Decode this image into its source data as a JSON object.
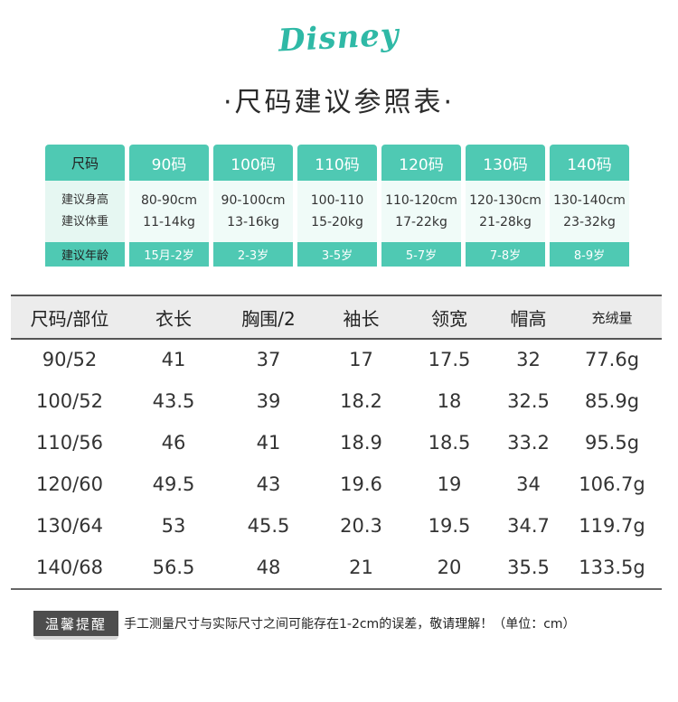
{
  "brand": {
    "logo_text": "DISNEY"
  },
  "title": "·尺码建议参照表·",
  "grid": {
    "labels": {
      "size": "尺码",
      "height": "建议身高",
      "weight": "建议体重",
      "age": "建议年龄"
    },
    "sizes": [
      {
        "size": "90码",
        "height": "80-90cm",
        "weight": "11-14kg",
        "age": "15月-2岁"
      },
      {
        "size": "100码",
        "height": "90-100cm",
        "weight": "13-16kg",
        "age": "2-3岁"
      },
      {
        "size": "110码",
        "height": "100-110",
        "weight": "15-20kg",
        "age": "3-5岁"
      },
      {
        "size": "120码",
        "height": "110-120cm",
        "weight": "17-22kg",
        "age": "5-7岁"
      },
      {
        "size": "130码",
        "height": "120-130cm",
        "weight": "21-28kg",
        "age": "7-8岁"
      },
      {
        "size": "140码",
        "height": "130-140cm",
        "weight": "23-32kg",
        "age": "8-9岁"
      }
    ],
    "colors": {
      "accent": "#4fc9b3",
      "light": "#e6f7f2"
    }
  },
  "table": {
    "headers": [
      "尺码/部位",
      "衣长",
      "胸围/2",
      "袖长",
      "领宽",
      "帽高",
      "充绒量"
    ],
    "rows": [
      [
        "90/52",
        "41",
        "37",
        "17",
        "17.5",
        "32",
        "77.6g"
      ],
      [
        "100/52",
        "43.5",
        "39",
        "18.2",
        "18",
        "32.5",
        "85.9g"
      ],
      [
        "110/56",
        "46",
        "41",
        "18.9",
        "18.5",
        "33.2",
        "95.5g"
      ],
      [
        "120/60",
        "49.5",
        "43",
        "19.6",
        "19",
        "34",
        "106.7g"
      ],
      [
        "130/64",
        "53",
        "45.5",
        "20.3",
        "19.5",
        "34.7",
        "119.7g"
      ],
      [
        "140/68",
        "56.5",
        "48",
        "21",
        "20",
        "35.5",
        "133.5g"
      ]
    ]
  },
  "notice": {
    "badge": "温馨提醒",
    "text": "手工测量尺寸与实际尺寸之间可能存在1-2cm的误差，敬请理解！（单位：cm）"
  }
}
